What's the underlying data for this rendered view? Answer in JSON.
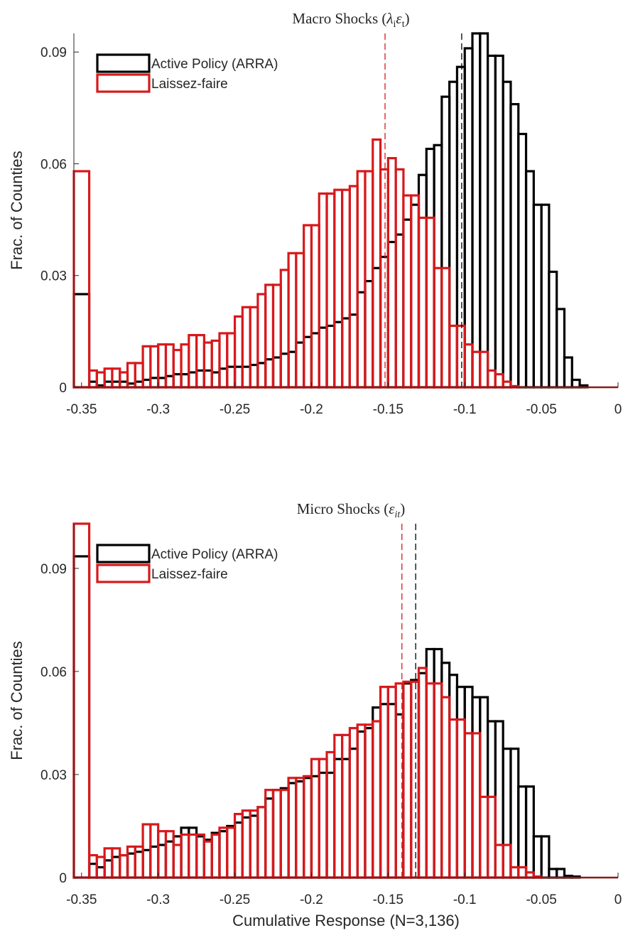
{
  "colors": {
    "policy": "#000000",
    "laissez": "#d7191c",
    "axis": "#262626"
  },
  "chart_data": [
    {
      "type": "histogram",
      "title": "Macro Shocks (λᵢεₜ)",
      "title_parts": [
        "Macro Shocks (",
        "λ",
        "i",
        "ε",
        "t",
        ")"
      ],
      "xlabel": "",
      "ylabel": "Frac. of Counties",
      "xlim": [
        -0.355,
        0.0
      ],
      "ylim": [
        0,
        0.095
      ],
      "xticks": [
        -0.35,
        -0.3,
        -0.25,
        -0.2,
        -0.15,
        -0.1,
        -0.05,
        0
      ],
      "xtick_labels": [
        "-0.35",
        "-0.3",
        "-0.25",
        "-0.2",
        "-0.15",
        "-0.1",
        "-0.05",
        "0"
      ],
      "yticks": [
        0,
        0.03,
        0.06,
        0.09
      ],
      "ytick_labels": [
        "0",
        "0.03",
        "0.06",
        "0.09"
      ],
      "bin_edges": [
        -0.355,
        -0.345,
        -0.34,
        -0.335,
        -0.33,
        -0.325,
        -0.32,
        -0.315,
        -0.31,
        -0.305,
        -0.3,
        -0.295,
        -0.29,
        -0.285,
        -0.28,
        -0.275,
        -0.27,
        -0.265,
        -0.26,
        -0.255,
        -0.25,
        -0.245,
        -0.24,
        -0.235,
        -0.23,
        -0.225,
        -0.22,
        -0.215,
        -0.21,
        -0.205,
        -0.2,
        -0.195,
        -0.19,
        -0.185,
        -0.18,
        -0.175,
        -0.17,
        -0.165,
        -0.16,
        -0.155,
        -0.15,
        -0.145,
        -0.14,
        -0.135,
        -0.13,
        -0.125,
        -0.12,
        -0.115,
        -0.11,
        -0.105,
        -0.1,
        -0.095,
        -0.09,
        -0.085,
        -0.08,
        -0.075,
        -0.07,
        -0.065,
        -0.06,
        -0.055,
        -0.05,
        -0.045,
        -0.04,
        -0.035,
        -0.03,
        -0.025,
        -0.02
      ],
      "legend_position": "top-left",
      "series": [
        {
          "name": "Active Policy (ARRA)",
          "color": "#000000",
          "mean_line": -0.102,
          "values": [
            0.025,
            0.0015,
            0.0005,
            0.0015,
            0.0015,
            0.0015,
            0.001,
            0.0015,
            0.002,
            0.0025,
            0.0025,
            0.003,
            0.0035,
            0.0035,
            0.004,
            0.0045,
            0.0045,
            0.004,
            0.005,
            0.0055,
            0.0055,
            0.0055,
            0.006,
            0.0065,
            0.0075,
            0.008,
            0.009,
            0.0095,
            0.012,
            0.0135,
            0.0145,
            0.016,
            0.0165,
            0.0175,
            0.0185,
            0.0195,
            0.0255,
            0.0285,
            0.032,
            0.035,
            0.039,
            0.041,
            0.045,
            0.049,
            0.057,
            0.064,
            0.065,
            0.078,
            0.082,
            0.086,
            0.091,
            0.095,
            0.095,
            0.089,
            0.089,
            0.082,
            0.076,
            0.068,
            0.058,
            0.049,
            0.049,
            0.031,
            0.021,
            0.008,
            0.002,
            0.0005
          ]
        },
        {
          "name": "Laissez-faire",
          "color": "#d7191c",
          "mean_line": -0.152,
          "values": [
            0.058,
            0.0045,
            0.004,
            0.005,
            0.005,
            0.004,
            0.0065,
            0.0065,
            0.011,
            0.011,
            0.0115,
            0.0115,
            0.01,
            0.0115,
            0.014,
            0.014,
            0.012,
            0.0125,
            0.0145,
            0.0145,
            0.019,
            0.0215,
            0.0215,
            0.025,
            0.0275,
            0.0275,
            0.0315,
            0.036,
            0.036,
            0.0435,
            0.0435,
            0.052,
            0.052,
            0.053,
            0.053,
            0.054,
            0.058,
            0.058,
            0.0665,
            0.0585,
            0.0615,
            0.0585,
            0.0515,
            0.0515,
            0.0455,
            0.0455,
            0.032,
            0.032,
            0.0165,
            0.0165,
            0.0115,
            0.0095,
            0.0095,
            0.0045,
            0.0035,
            0.0015,
            0.0003,
            0,
            0,
            0,
            0,
            0,
            0,
            0,
            0,
            0
          ]
        }
      ]
    },
    {
      "type": "histogram",
      "title": "Micro Shocks (εᵢₜ)",
      "title_parts": [
        "Micro Shocks (",
        "ε",
        "it",
        ")"
      ],
      "xlabel": "Cumulative Response (N=3,136)",
      "ylabel": "Frac. of Counties",
      "xlim": [
        -0.355,
        0.0
      ],
      "ylim": [
        0,
        0.103
      ],
      "xticks": [
        -0.35,
        -0.3,
        -0.25,
        -0.2,
        -0.15,
        -0.1,
        -0.05,
        0
      ],
      "xtick_labels": [
        "-0.35",
        "-0.3",
        "-0.25",
        "-0.2",
        "-0.15",
        "-0.1",
        "-0.05",
        "0"
      ],
      "yticks": [
        0,
        0.03,
        0.06,
        0.09
      ],
      "ytick_labels": [
        "0",
        "0.03",
        "0.06",
        "0.09"
      ],
      "bin_edges": [
        -0.355,
        -0.345,
        -0.34,
        -0.335,
        -0.33,
        -0.325,
        -0.32,
        -0.315,
        -0.31,
        -0.305,
        -0.3,
        -0.295,
        -0.29,
        -0.285,
        -0.28,
        -0.275,
        -0.27,
        -0.265,
        -0.26,
        -0.255,
        -0.25,
        -0.245,
        -0.24,
        -0.235,
        -0.23,
        -0.225,
        -0.22,
        -0.215,
        -0.21,
        -0.205,
        -0.2,
        -0.195,
        -0.19,
        -0.185,
        -0.18,
        -0.175,
        -0.17,
        -0.165,
        -0.16,
        -0.155,
        -0.15,
        -0.145,
        -0.14,
        -0.135,
        -0.13,
        -0.125,
        -0.12,
        -0.115,
        -0.11,
        -0.105,
        -0.1,
        -0.095,
        -0.09,
        -0.085,
        -0.08,
        -0.075,
        -0.07,
        -0.065,
        -0.06,
        -0.055,
        -0.05,
        -0.045,
        -0.04,
        -0.035,
        -0.03,
        -0.025,
        -0.02
      ],
      "legend_position": "top-left",
      "series": [
        {
          "name": "Active Policy (ARRA)",
          "color": "#000000",
          "mean_line": -0.132,
          "values": [
            0.0935,
            0.004,
            0.003,
            0.005,
            0.006,
            0.0065,
            0.007,
            0.0075,
            0.008,
            0.009,
            0.0095,
            0.0105,
            0.012,
            0.0145,
            0.0145,
            0.012,
            0.011,
            0.013,
            0.0135,
            0.015,
            0.016,
            0.0175,
            0.018,
            0.0205,
            0.023,
            0.0255,
            0.026,
            0.0275,
            0.028,
            0.029,
            0.0295,
            0.0305,
            0.0305,
            0.0345,
            0.0345,
            0.0375,
            0.0425,
            0.0435,
            0.0495,
            0.0505,
            0.0505,
            0.0475,
            0.0565,
            0.0575,
            0.0595,
            0.0665,
            0.0665,
            0.0625,
            0.059,
            0.0555,
            0.0555,
            0.0525,
            0.0525,
            0.0455,
            0.0455,
            0.0375,
            0.0375,
            0.0265,
            0.0265,
            0.012,
            0.012,
            0.0025,
            0.0025,
            0.0005,
            0.0003,
            0
          ]
        },
        {
          "name": "Laissez-faire",
          "color": "#d7191c",
          "mean_line": -0.141,
          "values": [
            0.103,
            0.0065,
            0.006,
            0.0085,
            0.0085,
            0.0065,
            0.009,
            0.009,
            0.0155,
            0.0155,
            0.0135,
            0.0135,
            0.0095,
            0.0125,
            0.0125,
            0.0125,
            0.0105,
            0.0125,
            0.0145,
            0.0145,
            0.0185,
            0.0195,
            0.0195,
            0.0205,
            0.0255,
            0.0255,
            0.0255,
            0.029,
            0.029,
            0.0295,
            0.0345,
            0.0345,
            0.0365,
            0.0415,
            0.0415,
            0.0435,
            0.0445,
            0.0445,
            0.0455,
            0.0555,
            0.0555,
            0.0565,
            0.057,
            0.057,
            0.061,
            0.0565,
            0.0565,
            0.0525,
            0.046,
            0.046,
            0.042,
            0.042,
            0.0235,
            0.0235,
            0.0095,
            0.0095,
            0.003,
            0.003,
            0.0015,
            0.0003,
            0,
            0,
            0,
            0,
            0,
            0
          ]
        }
      ]
    }
  ]
}
